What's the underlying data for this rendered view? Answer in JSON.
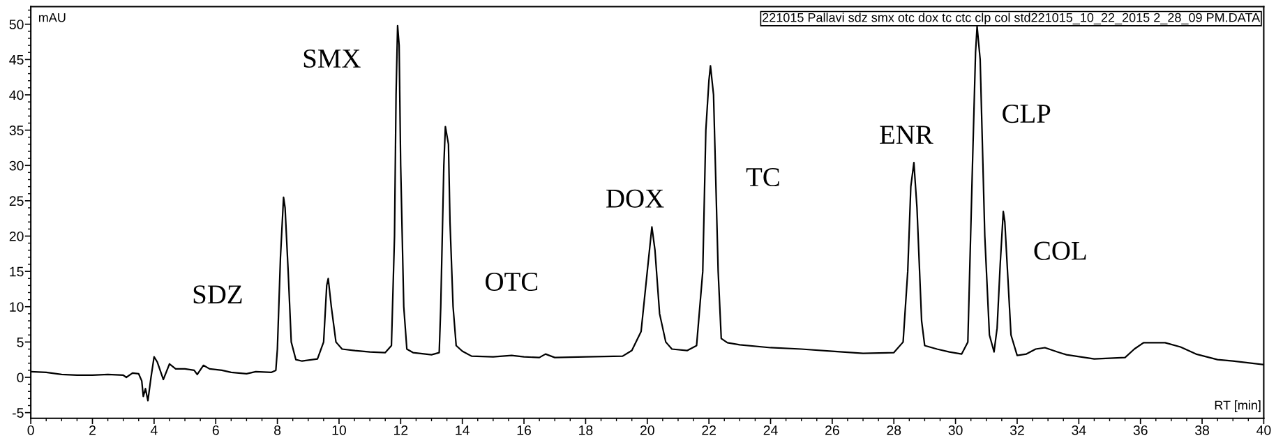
{
  "chart_data": {
    "type": "line",
    "xlabel": "RT [min]",
    "ylabel": "mAU",
    "xlim": [
      0,
      40
    ],
    "ylim": [
      -5.8,
      52.5
    ],
    "xticks": [
      0,
      2,
      4,
      6,
      8,
      10,
      12,
      14,
      16,
      18,
      20,
      22,
      24,
      26,
      28,
      30,
      32,
      34,
      36,
      38,
      40
    ],
    "yticks": [
      -5,
      0,
      5,
      10,
      15,
      20,
      25,
      30,
      35,
      40,
      45,
      50
    ],
    "grid": false,
    "marker": "none",
    "line_style": "solid",
    "series": [
      {
        "color": "#000000",
        "x": [
          0,
          0.5,
          1,
          1.5,
          2,
          2.5,
          3,
          3.1,
          3.3,
          3.5,
          3.6,
          3.65,
          3.72,
          3.8,
          3.9,
          4.0,
          4.1,
          4.3,
          4.5,
          4.7,
          5.0,
          5.3,
          5.4,
          5.6,
          5.8,
          6.2,
          6.5,
          7,
          7.3,
          7.8,
          7.95,
          8.0,
          8.1,
          8.2,
          8.25,
          8.35,
          8.45,
          8.6,
          8.8,
          9.3,
          9.5,
          9.6,
          9.65,
          9.75,
          9.9,
          10.1,
          10.5,
          11,
          11.5,
          11.7,
          11.8,
          11.85,
          11.9,
          11.95,
          12.0,
          12.1,
          12.2,
          12.4,
          12.8,
          13.0,
          13.25,
          13.3,
          13.4,
          13.45,
          13.55,
          13.6,
          13.7,
          13.8,
          14.0,
          14.3,
          15,
          15.6,
          16,
          16.5,
          16.7,
          17,
          18,
          19.2,
          19.5,
          19.8,
          20.0,
          20.15,
          20.25,
          20.4,
          20.6,
          20.8,
          21.3,
          21.6,
          21.8,
          21.9,
          22.0,
          22.05,
          22.15,
          22.3,
          22.4,
          22.6,
          23,
          24,
          25,
          26,
          27,
          28,
          28.3,
          28.45,
          28.55,
          28.65,
          28.75,
          28.9,
          29.0,
          29.4,
          29.8,
          30.2,
          30.4,
          30.55,
          30.65,
          30.7,
          30.8,
          30.95,
          31.1,
          31.25,
          31.35,
          31.45,
          31.55,
          31.6,
          31.7,
          31.8,
          32.0,
          32.3,
          32.6,
          32.9,
          33.3,
          33.6,
          34.5,
          35.5,
          35.8,
          36.1,
          36.8,
          37.3,
          37.8,
          38.5,
          39,
          40
        ],
        "values": [
          0.8,
          0.7,
          0.4,
          0.3,
          0.3,
          0.4,
          0.3,
          0,
          0.6,
          0.5,
          -0.5,
          -2.7,
          -1.6,
          -3.3,
          0,
          2.9,
          2.2,
          -0.3,
          1.9,
          1.2,
          1.2,
          1.0,
          0.4,
          1.7,
          1.2,
          1.0,
          0.7,
          0.5,
          0.8,
          0.7,
          1.0,
          4,
          17,
          25.5,
          24,
          15,
          5,
          2.5,
          2.3,
          2.6,
          5,
          13,
          14,
          10,
          5,
          4,
          3.8,
          3.6,
          3.5,
          4.5,
          20,
          40,
          49.8,
          47,
          30,
          10,
          4,
          3.5,
          3.3,
          3.2,
          3.5,
          10,
          30,
          35.5,
          33,
          22,
          10,
          4.5,
          3.7,
          3.0,
          2.9,
          3.1,
          2.9,
          2.8,
          3.3,
          2.8,
          2.9,
          3.0,
          3.8,
          6.5,
          15,
          21.3,
          18,
          9,
          5,
          4.0,
          3.8,
          4.5,
          15,
          35,
          42,
          44.1,
          40,
          15,
          5.5,
          4.9,
          4.6,
          4.2,
          4.0,
          3.7,
          3.4,
          3.5,
          5,
          15,
          27,
          30.4,
          24,
          8,
          4.5,
          4.0,
          3.6,
          3.3,
          5,
          30,
          46,
          49.7,
          45,
          20,
          6,
          3.6,
          7,
          16,
          23.5,
          22,
          14,
          6,
          3.1,
          3.3,
          4.0,
          4.2,
          3.6,
          3.2,
          2.6,
          2.8,
          4,
          4.9,
          4.9,
          4.3,
          3.3,
          2.5,
          2.3,
          1.8
        ]
      }
    ],
    "annotations": [
      "SDZ",
      "SMX",
      "OTC",
      "DOX",
      "TC",
      "ENR",
      "CLP",
      "COL",
      "221015 Pallavi sdz smx otc dox tc ctc clp col std221015_10_22_2015 2_28_09 PM.DATA"
    ]
  }
}
